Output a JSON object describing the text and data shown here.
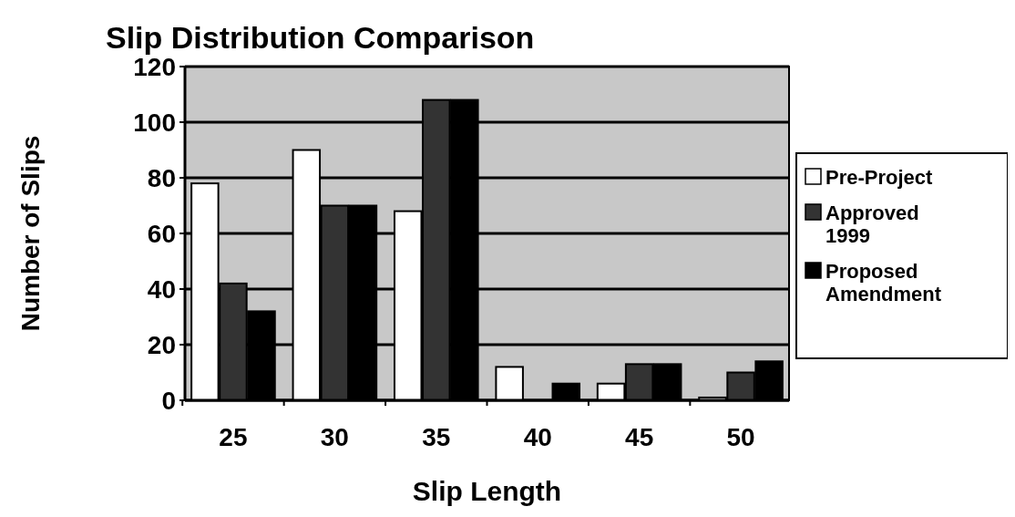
{
  "chart_data": {
    "type": "bar",
    "title": "Slip Distribution Comparison",
    "xlabel": "Slip Length",
    "ylabel": "Number of Slips",
    "categories": [
      "25",
      "30",
      "35",
      "40",
      "45",
      "50"
    ],
    "series": [
      {
        "name": "Pre-Project",
        "color": "#ffffff",
        "values": [
          78,
          90,
          68,
          12,
          6,
          1
        ]
      },
      {
        "name": "Approved 1999",
        "color": "#333333",
        "values": [
          42,
          70,
          108,
          0,
          13,
          10
        ]
      },
      {
        "name": "Proposed Amendment",
        "color": "#000000",
        "values": [
          32,
          70,
          108,
          6,
          13,
          14
        ]
      }
    ],
    "ylim": [
      0,
      120
    ],
    "yticks": [
      0,
      20,
      40,
      60,
      80,
      100,
      120
    ],
    "grid": "y",
    "legend": "right"
  }
}
